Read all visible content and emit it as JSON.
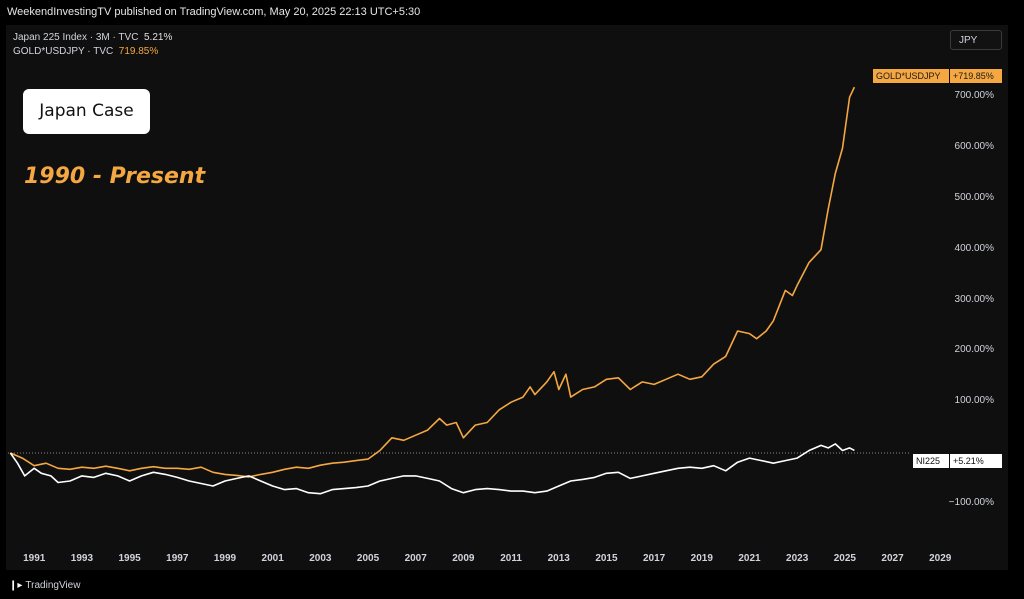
{
  "header": {
    "published_line": "WeekendInvestingTV published on TradingView.com, May 20, 2025 22:13 UTC+5:30",
    "legend": [
      {
        "label": "Japan 225 Index · 3M · TVC",
        "value": "5.21%"
      },
      {
        "label": "GOLD*USDJPY · TVC",
        "value": "719.85%"
      }
    ],
    "currency_button": "JPY"
  },
  "annotations": {
    "case_title": "Japan Case",
    "period": "1990 - Present"
  },
  "price_tags": {
    "gold_name": "GOLD*USDJPY",
    "gold_value": "+719.85%",
    "index_name": "NI225",
    "index_value": "+5.21%"
  },
  "footer": {
    "brand": "TradingView"
  },
  "colors": {
    "gold": "#f5a742",
    "index": "#ffffff",
    "background": "#0f0f0f"
  },
  "chart_data": {
    "type": "line",
    "y_axis_unit": "%",
    "ylim": [
      -120,
      730
    ],
    "xlim": [
      1989.9,
      2029.2
    ],
    "y_ticks": [
      {
        "value": 700,
        "label": "700.00%"
      },
      {
        "value": 600,
        "label": "600.00%"
      },
      {
        "value": 500,
        "label": "500.00%"
      },
      {
        "value": 400,
        "label": "400.00%"
      },
      {
        "value": 300,
        "label": "300.00%"
      },
      {
        "value": 200,
        "label": "200.00%"
      },
      {
        "value": 100,
        "label": "100.00%"
      },
      {
        "value": -100,
        "label": "−100.00%"
      }
    ],
    "x_ticks": [
      {
        "value": 1991,
        "label": "1991"
      },
      {
        "value": 1993,
        "label": "1993"
      },
      {
        "value": 1995,
        "label": "1995"
      },
      {
        "value": 1997,
        "label": "1997"
      },
      {
        "value": 1999,
        "label": "1999"
      },
      {
        "value": 2001,
        "label": "2001"
      },
      {
        "value": 2003,
        "label": "2003"
      },
      {
        "value": 2005,
        "label": "2005"
      },
      {
        "value": 2007,
        "label": "2007"
      },
      {
        "value": 2009,
        "label": "2009"
      },
      {
        "value": 2011,
        "label": "2011"
      },
      {
        "value": 2013,
        "label": "2013"
      },
      {
        "value": 2015,
        "label": "2015"
      },
      {
        "value": 2017,
        "label": "2017"
      },
      {
        "value": 2019,
        "label": "2019"
      },
      {
        "value": 2021,
        "label": "2021"
      },
      {
        "value": 2023,
        "label": "2023"
      },
      {
        "value": 2025,
        "label": "2025"
      },
      {
        "value": 2027,
        "label": "2027"
      },
      {
        "value": 2029,
        "label": "2029"
      }
    ],
    "baseline": 0,
    "series": [
      {
        "name": "GOLD*USDJPY",
        "color": "#f5a742",
        "points": [
          [
            1990.0,
            0
          ],
          [
            1990.5,
            -10
          ],
          [
            1991.0,
            -25
          ],
          [
            1991.5,
            -20
          ],
          [
            1992.0,
            -30
          ],
          [
            1992.5,
            -32
          ],
          [
            1993.0,
            -28
          ],
          [
            1993.5,
            -30
          ],
          [
            1994.0,
            -26
          ],
          [
            1994.5,
            -30
          ],
          [
            1995.0,
            -35
          ],
          [
            1995.5,
            -30
          ],
          [
            1996.0,
            -27
          ],
          [
            1996.5,
            -30
          ],
          [
            1997.0,
            -30
          ],
          [
            1997.5,
            -32
          ],
          [
            1998.0,
            -28
          ],
          [
            1998.5,
            -38
          ],
          [
            1999.0,
            -42
          ],
          [
            1999.5,
            -44
          ],
          [
            2000.0,
            -47
          ],
          [
            2000.5,
            -42
          ],
          [
            2001.0,
            -38
          ],
          [
            2001.5,
            -32
          ],
          [
            2002.0,
            -28
          ],
          [
            2002.5,
            -30
          ],
          [
            2003.0,
            -24
          ],
          [
            2003.5,
            -20
          ],
          [
            2004.0,
            -18
          ],
          [
            2004.5,
            -15
          ],
          [
            2005.0,
            -12
          ],
          [
            2005.5,
            5
          ],
          [
            2006.0,
            30
          ],
          [
            2006.5,
            25
          ],
          [
            2007.0,
            35
          ],
          [
            2007.5,
            45
          ],
          [
            2008.0,
            68
          ],
          [
            2008.3,
            55
          ],
          [
            2008.7,
            60
          ],
          [
            2009.0,
            30
          ],
          [
            2009.5,
            55
          ],
          [
            2010.0,
            60
          ],
          [
            2010.5,
            85
          ],
          [
            2011.0,
            100
          ],
          [
            2011.5,
            110
          ],
          [
            2011.8,
            130
          ],
          [
            2012.0,
            115
          ],
          [
            2012.5,
            140
          ],
          [
            2012.8,
            160
          ],
          [
            2013.0,
            125
          ],
          [
            2013.3,
            155
          ],
          [
            2013.5,
            110
          ],
          [
            2014.0,
            125
          ],
          [
            2014.5,
            130
          ],
          [
            2015.0,
            145
          ],
          [
            2015.5,
            148
          ],
          [
            2016.0,
            125
          ],
          [
            2016.5,
            140
          ],
          [
            2017.0,
            135
          ],
          [
            2017.5,
            145
          ],
          [
            2018.0,
            155
          ],
          [
            2018.5,
            145
          ],
          [
            2019.0,
            150
          ],
          [
            2019.5,
            175
          ],
          [
            2020.0,
            190
          ],
          [
            2020.5,
            240
          ],
          [
            2021.0,
            235
          ],
          [
            2021.3,
            225
          ],
          [
            2021.7,
            240
          ],
          [
            2022.0,
            260
          ],
          [
            2022.5,
            320
          ],
          [
            2022.8,
            310
          ],
          [
            2023.0,
            330
          ],
          [
            2023.5,
            375
          ],
          [
            2024.0,
            400
          ],
          [
            2024.3,
            480
          ],
          [
            2024.6,
            550
          ],
          [
            2024.9,
            600
          ],
          [
            2025.2,
            700
          ],
          [
            2025.4,
            720
          ]
        ]
      },
      {
        "name": "NI225",
        "color": "#ffffff",
        "points": [
          [
            1990.0,
            0
          ],
          [
            1990.3,
            -20
          ],
          [
            1990.6,
            -45
          ],
          [
            1991.0,
            -30
          ],
          [
            1991.3,
            -40
          ],
          [
            1991.7,
            -45
          ],
          [
            1992.0,
            -58
          ],
          [
            1992.5,
            -55
          ],
          [
            1993.0,
            -45
          ],
          [
            1993.5,
            -48
          ],
          [
            1994.0,
            -40
          ],
          [
            1994.5,
            -45
          ],
          [
            1995.0,
            -55
          ],
          [
            1995.5,
            -45
          ],
          [
            1996.0,
            -38
          ],
          [
            1996.5,
            -42
          ],
          [
            1997.0,
            -48
          ],
          [
            1997.5,
            -55
          ],
          [
            1998.0,
            -60
          ],
          [
            1998.5,
            -65
          ],
          [
            1999.0,
            -55
          ],
          [
            1999.5,
            -50
          ],
          [
            2000.0,
            -45
          ],
          [
            2000.5,
            -55
          ],
          [
            2001.0,
            -65
          ],
          [
            2001.5,
            -72
          ],
          [
            2002.0,
            -70
          ],
          [
            2002.5,
            -78
          ],
          [
            2003.0,
            -80
          ],
          [
            2003.5,
            -72
          ],
          [
            2004.0,
            -70
          ],
          [
            2004.5,
            -68
          ],
          [
            2005.0,
            -65
          ],
          [
            2005.5,
            -55
          ],
          [
            2006.0,
            -50
          ],
          [
            2006.5,
            -45
          ],
          [
            2007.0,
            -45
          ],
          [
            2007.5,
            -50
          ],
          [
            2008.0,
            -55
          ],
          [
            2008.5,
            -70
          ],
          [
            2009.0,
            -78
          ],
          [
            2009.5,
            -72
          ],
          [
            2010.0,
            -70
          ],
          [
            2010.5,
            -72
          ],
          [
            2011.0,
            -75
          ],
          [
            2011.5,
            -75
          ],
          [
            2012.0,
            -78
          ],
          [
            2012.5,
            -75
          ],
          [
            2013.0,
            -65
          ],
          [
            2013.5,
            -55
          ],
          [
            2014.0,
            -52
          ],
          [
            2014.5,
            -48
          ],
          [
            2015.0,
            -40
          ],
          [
            2015.5,
            -38
          ],
          [
            2016.0,
            -50
          ],
          [
            2016.5,
            -45
          ],
          [
            2017.0,
            -40
          ],
          [
            2017.5,
            -35
          ],
          [
            2018.0,
            -30
          ],
          [
            2018.5,
            -28
          ],
          [
            2019.0,
            -30
          ],
          [
            2019.5,
            -25
          ],
          [
            2020.0,
            -35
          ],
          [
            2020.5,
            -18
          ],
          [
            2021.0,
            -10
          ],
          [
            2021.5,
            -15
          ],
          [
            2022.0,
            -20
          ],
          [
            2022.5,
            -15
          ],
          [
            2023.0,
            -10
          ],
          [
            2023.5,
            5
          ],
          [
            2024.0,
            15
          ],
          [
            2024.3,
            10
          ],
          [
            2024.6,
            18
          ],
          [
            2024.9,
            5
          ],
          [
            2025.2,
            10
          ],
          [
            2025.4,
            5.21
          ]
        ]
      }
    ]
  }
}
